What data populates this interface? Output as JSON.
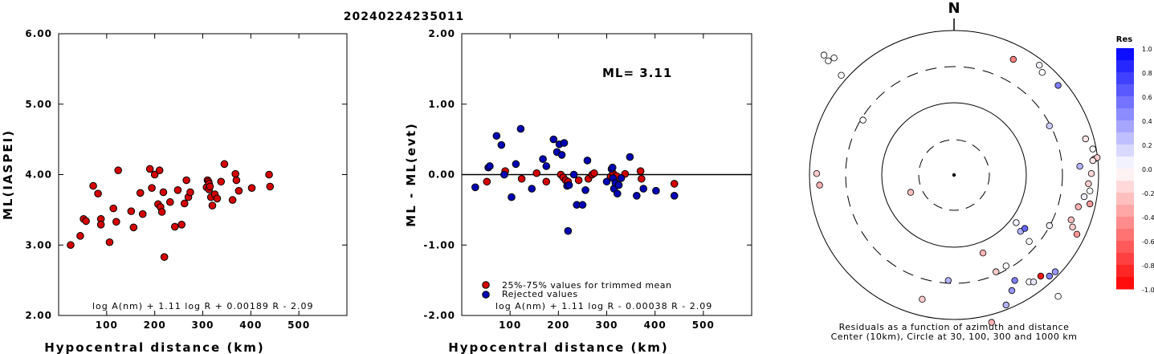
{
  "title": "20240224235011",
  "colors": {
    "red": "#d40000",
    "blue": "#0000b4",
    "axis": "#000000"
  },
  "chart_data": [
    {
      "type": "scatter",
      "name": "ml-panel",
      "xlabel": "Hypocentral distance (km)",
      "ylabel": "ML(IASPEI)",
      "xlim": [
        0,
        600
      ],
      "ylim": [
        2.0,
        6.0
      ],
      "xticks": [
        100,
        200,
        300,
        400,
        500
      ],
      "xtick_labels": [
        "100",
        "200",
        "300",
        "400",
        "500"
      ],
      "yticks": [
        2.0,
        3.0,
        4.0,
        5.0,
        6.0
      ],
      "ytick_labels": [
        "2.00",
        "3.00",
        "4.00",
        "5.00",
        "6.00"
      ],
      "formula": "log A(nm) + 1.11 log R + 0.00189 R - 2.09",
      "series": [
        {
          "color": "red",
          "points": [
            [
              25,
              3.0
            ],
            [
              45,
              3.13
            ],
            [
              52,
              3.37
            ],
            [
              57,
              3.34
            ],
            [
              72,
              3.84
            ],
            [
              82,
              3.73
            ],
            [
              88,
              3.37
            ],
            [
              88,
              3.29
            ],
            [
              106,
              3.04
            ],
            [
              114,
              3.52
            ],
            [
              120,
              3.33
            ],
            [
              124,
              4.06
            ],
            [
              151,
              3.48
            ],
            [
              156,
              3.25
            ],
            [
              170,
              3.74
            ],
            [
              175,
              3.44
            ],
            [
              190,
              4.08
            ],
            [
              194,
              3.81
            ],
            [
              200,
              4.0
            ],
            [
              207,
              3.58
            ],
            [
              210,
              4.06
            ],
            [
              212,
              3.54
            ],
            [
              215,
              3.47
            ],
            [
              218,
              3.75
            ],
            [
              220,
              2.83
            ],
            [
              232,
              3.61
            ],
            [
              242,
              3.26
            ],
            [
              248,
              3.78
            ],
            [
              256,
              3.29
            ],
            [
              262,
              3.59
            ],
            [
              266,
              3.92
            ],
            [
              270,
              3.68
            ],
            [
              274,
              3.75
            ],
            [
              308,
              3.82
            ],
            [
              310,
              3.92
            ],
            [
              312,
              3.9
            ],
            [
              313,
              3.79
            ],
            [
              313,
              3.87
            ],
            [
              315,
              3.83
            ],
            [
              317,
              3.68
            ],
            [
              320,
              3.56
            ],
            [
              325,
              3.72
            ],
            [
              330,
              3.66
            ],
            [
              338,
              3.9
            ],
            [
              345,
              4.15
            ],
            [
              362,
              3.64
            ],
            [
              368,
              4.01
            ],
            [
              370,
              3.92
            ],
            [
              375,
              3.77
            ],
            [
              402,
              3.81
            ],
            [
              438,
              4.0
            ],
            [
              440,
              3.83
            ]
          ]
        }
      ]
    },
    {
      "type": "scatter",
      "name": "residual-panel",
      "xlabel": "Hypocentral distance (km)",
      "ylabel": "ML - ML(evt)",
      "xlim": [
        0,
        600
      ],
      "ylim": [
        -2.0,
        2.0
      ],
      "xticks": [
        100,
        200,
        300,
        400,
        500
      ],
      "xtick_labels": [
        "100",
        "200",
        "300",
        "400",
        "500"
      ],
      "yticks": [
        -2.0,
        -1.0,
        0.0,
        1.0,
        2.0
      ],
      "ytick_labels": [
        "-2.00",
        "-1.00",
        "0.00",
        "1.00",
        "2.00"
      ],
      "annotation": "ML= 3.11",
      "formula": "log A(nm) + 1.11 log R - 0.00038 R - 2.09",
      "legend": [
        "25%-75% values for trimmed mean",
        "Rejected values"
      ],
      "series": [
        {
          "color": "red",
          "points": [
            [
              52,
              -0.1
            ],
            [
              88,
              0.0
            ],
            [
              90,
              0.05
            ],
            [
              124,
              -0.06
            ],
            [
              155,
              0.02
            ],
            [
              175,
              -0.1
            ],
            [
              205,
              0.0
            ],
            [
              210,
              -0.04
            ],
            [
              215,
              -0.08
            ],
            [
              220,
              -0.1
            ],
            [
              242,
              -0.08
            ],
            [
              262,
              -0.06
            ],
            [
              270,
              0.0
            ],
            [
              274,
              0.02
            ],
            [
              308,
              -0.03
            ],
            [
              313,
              0.02
            ],
            [
              320,
              -0.02
            ],
            [
              338,
              0.01
            ],
            [
              370,
              0.05
            ],
            [
              372,
              -0.06
            ],
            [
              440,
              -0.13
            ]
          ]
        },
        {
          "color": "blue",
          "points": [
            [
              28,
              -0.18
            ],
            [
              55,
              0.1
            ],
            [
              58,
              0.12
            ],
            [
              72,
              0.55
            ],
            [
              82,
              0.42
            ],
            [
              88,
              0.0
            ],
            [
              103,
              -0.32
            ],
            [
              112,
              0.15
            ],
            [
              122,
              0.65
            ],
            [
              145,
              -0.2
            ],
            [
              168,
              0.22
            ],
            [
              175,
              0.12
            ],
            [
              190,
              0.5
            ],
            [
              197,
              0.32
            ],
            [
              202,
              0.43
            ],
            [
              207,
              0.28
            ],
            [
              212,
              0.45
            ],
            [
              218,
              -0.16
            ],
            [
              220,
              -0.8
            ],
            [
              222,
              -0.15
            ],
            [
              232,
              0.0
            ],
            [
              238,
              -0.43
            ],
            [
              250,
              -0.43
            ],
            [
              256,
              -0.22
            ],
            [
              260,
              0.2
            ],
            [
              300,
              -0.1
            ],
            [
              310,
              0.08
            ],
            [
              312,
              0.1
            ],
            [
              313,
              -0.05
            ],
            [
              315,
              -0.2
            ],
            [
              318,
              -0.12
            ],
            [
              322,
              -0.27
            ],
            [
              325,
              -0.15
            ],
            [
              330,
              -0.05
            ],
            [
              348,
              0.25
            ],
            [
              362,
              -0.3
            ],
            [
              376,
              -0.2
            ],
            [
              402,
              -0.23
            ],
            [
              440,
              -0.3
            ]
          ]
        }
      ]
    },
    {
      "type": "scatter",
      "name": "azimuth-panel",
      "north_label": "N",
      "caption_line1": "Residuals as a function of azimuth and distance",
      "caption_line2": "Center (10km), Circle at 30, 100, 300 and 1000 km",
      "colorbar": {
        "title": "Res",
        "tick_labels": [
          "1.0",
          "0.8",
          "0.6",
          "0.4",
          "0.2",
          "0.0",
          "-0.2",
          "-0.4",
          "-0.6",
          "-0.8",
          "-1.0"
        ],
        "range": [
          -1.0,
          1.0
        ]
      },
      "stations": [
        [
          -0.9,
          0.83,
          0.0
        ],
        [
          -0.87,
          0.79,
          0.0
        ],
        [
          -0.83,
          0.81,
          0.0
        ],
        [
          -0.78,
          0.69,
          0.0
        ],
        [
          -0.63,
          0.38,
          0.0
        ],
        [
          -0.95,
          0.01,
          -0.2
        ],
        [
          -0.93,
          -0.07,
          -0.3
        ],
        [
          -0.3,
          -0.12,
          -0.25
        ],
        [
          0.41,
          0.8,
          -0.5
        ],
        [
          0.59,
          0.76,
          0.05
        ],
        [
          0.61,
          0.71,
          0.0
        ],
        [
          0.72,
          0.62,
          0.5
        ],
        [
          0.66,
          0.34,
          0.2
        ],
        [
          0.91,
          0.25,
          -0.1
        ],
        [
          0.96,
          0.18,
          0.0
        ],
        [
          0.97,
          0.11,
          -0.25
        ],
        [
          0.99,
          0.12,
          -0.2
        ],
        [
          0.96,
          0.1,
          -0.1
        ],
        [
          0.87,
          0.06,
          0.3
        ],
        [
          0.95,
          0.01,
          -0.15
        ],
        [
          0.93,
          -0.06,
          -0.2
        ],
        [
          0.94,
          -0.11,
          0.0
        ],
        [
          0.9,
          -0.15,
          0.05
        ],
        [
          0.94,
          -0.2,
          -0.4
        ],
        [
          0.86,
          -0.22,
          -0.3
        ],
        [
          0.82,
          -0.36,
          -0.2
        ],
        [
          0.81,
          -0.31,
          -0.25
        ],
        [
          0.85,
          -0.41,
          -0.4
        ],
        [
          0.66,
          -0.35,
          0.05
        ],
        [
          0.43,
          -0.33,
          0.05
        ],
        [
          0.46,
          -0.39,
          0.3
        ],
        [
          0.49,
          -0.37,
          0.6
        ],
        [
          0.52,
          -0.46,
          0.0
        ],
        [
          0.2,
          -0.54,
          -0.3
        ],
        [
          0.36,
          -0.63,
          0.0
        ],
        [
          0.29,
          -0.67,
          -0.2
        ],
        [
          0.52,
          -0.74,
          0.0
        ],
        [
          0.42,
          -0.73,
          0.5
        ],
        [
          0.4,
          -0.8,
          0.4
        ],
        [
          0.55,
          -0.74,
          0.1
        ],
        [
          0.6,
          -0.7,
          -0.9
        ],
        [
          0.66,
          -0.7,
          0.5
        ],
        [
          0.7,
          -0.67,
          0.4
        ],
        [
          0.72,
          -0.84,
          0.0
        ],
        [
          0.36,
          -0.9,
          0.3
        ],
        [
          0.26,
          -1.02,
          -0.3
        ],
        [
          -0.04,
          -0.73,
          0.3
        ],
        [
          -0.22,
          -0.86,
          -0.2
        ]
      ]
    }
  ]
}
